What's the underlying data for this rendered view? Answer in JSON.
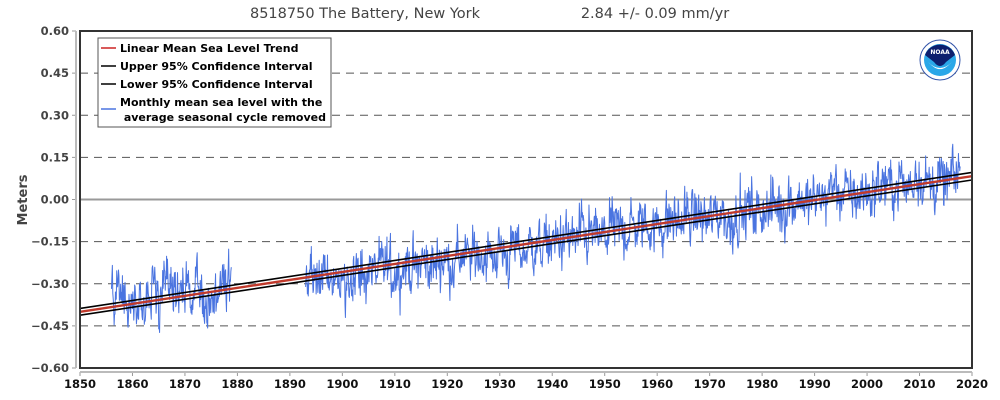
{
  "chart_data": {
    "type": "line",
    "title": "8518750 The Battery, New York",
    "subtitle": "2.84 +/-  0.09 mm/yr",
    "xlabel": "",
    "ylabel": "Meters",
    "xlim": [
      1850,
      2020
    ],
    "ylim": [
      -0.6,
      0.6
    ],
    "x_ticks": [
      "1850",
      "1860",
      "1870",
      "1880",
      "1890",
      "1900",
      "1910",
      "1920",
      "1930",
      "1940",
      "1950",
      "1960",
      "1970",
      "1980",
      "1990",
      "2000",
      "2010",
      "2020"
    ],
    "y_ticks": [
      "0.60",
      "0.45",
      "0.30",
      "0.15",
      "0.00",
      "-0.15",
      "-0.30",
      "-0.45",
      "-0.60"
    ],
    "grid": "dashed horizontal",
    "legend_position": "top-left",
    "legend": [
      {
        "label": "Linear Mean Sea Level Trend",
        "color": "#cc2222"
      },
      {
        "label": "Upper 95% Confidence Interval",
        "color": "#000000"
      },
      {
        "label": "Lower 95% Confidence Interval",
        "color": "#000000"
      },
      {
        "label": "Monthly mean sea level with the",
        "label2": " average seasonal cycle removed",
        "color": "#4a74e0"
      }
    ],
    "trend": {
      "rate_mm_per_yr": 2.84,
      "ci_mm_per_yr": 0.09,
      "value_at_1850": -0.4,
      "value_at_2020": 0.083
    },
    "series": [
      {
        "name": "Monthly mean sea level (annual approx. means)",
        "segments": [
          {
            "start_year": 1856,
            "end_year": 1878.9,
            "annual_means": [
              -0.36,
              -0.34,
              -0.33,
              -0.37,
              -0.38,
              -0.36,
              -0.35,
              -0.36,
              -0.32,
              -0.37,
              -0.33,
              -0.32,
              -0.3,
              -0.34,
              -0.33,
              -0.35,
              -0.33,
              -0.34,
              -0.37,
              -0.35,
              -0.33,
              -0.29,
              -0.27
            ]
          },
          {
            "start_year": 1893,
            "end_year": 2017.8,
            "annual_means": [
              -0.28,
              -0.29,
              -0.3,
              -0.27,
              -0.28,
              -0.27,
              -0.29,
              -0.28,
              -0.27,
              -0.26,
              -0.28,
              -0.27,
              -0.25,
              -0.26,
              -0.25,
              -0.24,
              -0.26,
              -0.25,
              -0.24,
              -0.23,
              -0.25,
              -0.24,
              -0.22,
              -0.23,
              -0.24,
              -0.22,
              -0.21,
              -0.23,
              -0.22,
              -0.2,
              -0.21,
              -0.21,
              -0.19,
              -0.2,
              -0.19,
              -0.21,
              -0.19,
              -0.18,
              -0.2,
              -0.18,
              -0.17,
              -0.19,
              -0.17,
              -0.16,
              -0.17,
              -0.17,
              -0.15,
              -0.16,
              -0.14,
              -0.15,
              -0.14,
              -0.15,
              -0.13,
              -0.14,
              -0.12,
              -0.13,
              -0.14,
              -0.12,
              -0.1,
              -0.11,
              -0.1,
              -0.11,
              -0.09,
              -0.1,
              -0.08,
              -0.09,
              -0.1,
              -0.08,
              -0.09,
              -0.07,
              -0.08,
              -0.08,
              -0.06,
              -0.07,
              -0.05,
              -0.06,
              -0.08,
              -0.07,
              -0.05,
              -0.04,
              -0.09,
              -0.07,
              -0.05,
              -0.06,
              -0.03,
              -0.04,
              -0.05,
              -0.02,
              -0.04,
              -0.01,
              -0.02,
              -0.03,
              0.0,
              -0.01,
              0.01,
              -0.02,
              -0.01,
              0.0,
              0.02,
              0.01,
              0.06,
              0.03,
              0.02,
              0.01,
              0.02,
              0.01,
              0.03,
              0.02,
              0.04,
              0.05,
              0.06,
              0.04,
              0.05,
              0.07,
              0.04,
              0.06,
              0.1,
              0.08,
              0.06,
              0.05,
              0.07,
              0.05,
              0.06,
              0.08,
              0.09
            ]
          }
        ],
        "color": "#4a74e0"
      }
    ]
  },
  "logo": {
    "name": "NOAA",
    "text": "NOAA"
  }
}
